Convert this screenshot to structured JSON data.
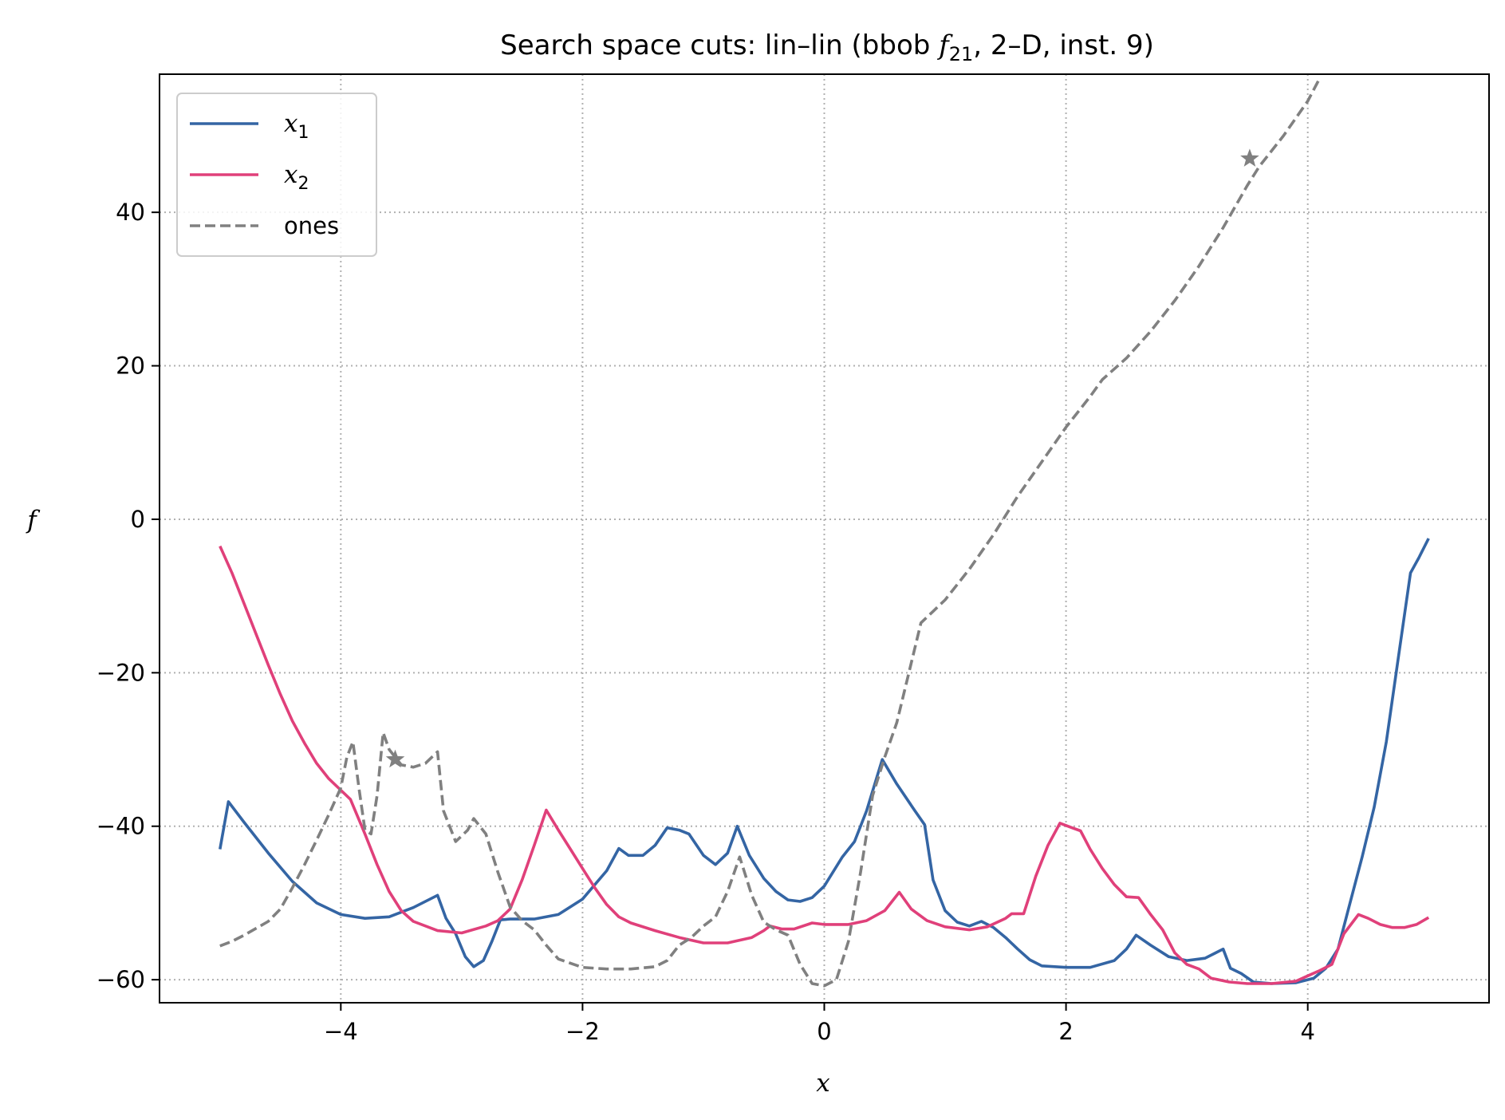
{
  "chart_data": {
    "type": "line",
    "title_parts": [
      "Search space cuts: lin–lin (bbob ",
      "f",
      "21",
      ", 2–D, inst. 9)"
    ],
    "xlabel": "x",
    "ylabel": "f",
    "xlim": [
      -5.5,
      5.5
    ],
    "ylim": [
      -63,
      58
    ],
    "xticks": [
      -4,
      -2,
      0,
      2,
      4
    ],
    "yticks": [
      -60,
      -40,
      -20,
      0,
      20,
      40
    ],
    "xtick_labels": [
      "−4",
      "−2",
      "0",
      "2",
      "4"
    ],
    "ytick_labels": [
      "−60",
      "−40",
      "−20",
      "0",
      "20",
      "40"
    ],
    "grid": true,
    "legend_position": "upper-left",
    "series": [
      {
        "name": "x",
        "name_sub": "1",
        "color": "#3465a4",
        "dashed": false,
        "points": [
          [
            -5.0,
            -43.0
          ],
          [
            -4.93,
            -36.8
          ],
          [
            -4.8,
            -39.5
          ],
          [
            -4.6,
            -43.5
          ],
          [
            -4.4,
            -47.2
          ],
          [
            -4.2,
            -50.0
          ],
          [
            -4.0,
            -51.5
          ],
          [
            -3.8,
            -52.0
          ],
          [
            -3.6,
            -51.8
          ],
          [
            -3.4,
            -50.6
          ],
          [
            -3.2,
            -49.0
          ],
          [
            -3.13,
            -52.0
          ],
          [
            -3.05,
            -54.0
          ],
          [
            -2.97,
            -57.0
          ],
          [
            -2.9,
            -58.3
          ],
          [
            -2.82,
            -57.5
          ],
          [
            -2.75,
            -55.0
          ],
          [
            -2.68,
            -52.2
          ],
          [
            -2.6,
            -52.1
          ],
          [
            -2.4,
            -52.1
          ],
          [
            -2.2,
            -51.5
          ],
          [
            -2.0,
            -49.5
          ],
          [
            -1.8,
            -45.8
          ],
          [
            -1.7,
            -42.9
          ],
          [
            -1.62,
            -43.8
          ],
          [
            -1.5,
            -43.8
          ],
          [
            -1.4,
            -42.5
          ],
          [
            -1.3,
            -40.2
          ],
          [
            -1.2,
            -40.5
          ],
          [
            -1.12,
            -41.0
          ],
          [
            -1.0,
            -43.8
          ],
          [
            -0.9,
            -45.0
          ],
          [
            -0.8,
            -43.5
          ],
          [
            -0.72,
            -40.0
          ],
          [
            -0.62,
            -43.8
          ],
          [
            -0.5,
            -46.8
          ],
          [
            -0.4,
            -48.5
          ],
          [
            -0.3,
            -49.6
          ],
          [
            -0.2,
            -49.8
          ],
          [
            -0.1,
            -49.3
          ],
          [
            0.0,
            -47.8
          ],
          [
            0.15,
            -44.0
          ],
          [
            0.25,
            -42.0
          ],
          [
            0.35,
            -38.0
          ],
          [
            0.48,
            -31.3
          ],
          [
            0.6,
            -34.5
          ],
          [
            0.75,
            -38.0
          ],
          [
            0.83,
            -39.8
          ],
          [
            0.9,
            -47.0
          ],
          [
            1.0,
            -51.0
          ],
          [
            1.1,
            -52.5
          ],
          [
            1.2,
            -53.0
          ],
          [
            1.3,
            -52.4
          ],
          [
            1.4,
            -53.2
          ],
          [
            1.5,
            -54.5
          ],
          [
            1.6,
            -56.0
          ],
          [
            1.7,
            -57.4
          ],
          [
            1.8,
            -58.2
          ],
          [
            2.0,
            -58.4
          ],
          [
            2.2,
            -58.4
          ],
          [
            2.4,
            -57.5
          ],
          [
            2.5,
            -56.0
          ],
          [
            2.58,
            -54.2
          ],
          [
            2.7,
            -55.5
          ],
          [
            2.85,
            -57.0
          ],
          [
            3.0,
            -57.5
          ],
          [
            3.15,
            -57.2
          ],
          [
            3.3,
            -56.0
          ],
          [
            3.36,
            -58.5
          ],
          [
            3.45,
            -59.2
          ],
          [
            3.55,
            -60.3
          ],
          [
            3.7,
            -60.5
          ],
          [
            3.9,
            -60.4
          ],
          [
            4.05,
            -59.8
          ],
          [
            4.15,
            -58.5
          ],
          [
            4.25,
            -56.0
          ],
          [
            4.35,
            -50.0
          ],
          [
            4.45,
            -44.0
          ],
          [
            4.55,
            -37.5
          ],
          [
            4.65,
            -29.0
          ],
          [
            4.75,
            -18.0
          ],
          [
            4.85,
            -7.0
          ],
          [
            4.92,
            -5.0
          ],
          [
            5.0,
            -2.5
          ]
        ]
      },
      {
        "name": "x",
        "name_sub": "2",
        "color": "#e0407a",
        "dashed": false,
        "points": [
          [
            -5.0,
            -3.5
          ],
          [
            -4.9,
            -7.0
          ],
          [
            -4.8,
            -11.0
          ],
          [
            -4.7,
            -15.0
          ],
          [
            -4.6,
            -19.0
          ],
          [
            -4.5,
            -22.8
          ],
          [
            -4.4,
            -26.3
          ],
          [
            -4.3,
            -29.2
          ],
          [
            -4.2,
            -31.8
          ],
          [
            -4.1,
            -33.8
          ],
          [
            -4.0,
            -35.3
          ],
          [
            -3.92,
            -36.5
          ],
          [
            -3.8,
            -41.0
          ],
          [
            -3.7,
            -45.0
          ],
          [
            -3.6,
            -48.5
          ],
          [
            -3.5,
            -51.0
          ],
          [
            -3.4,
            -52.4
          ],
          [
            -3.2,
            -53.6
          ],
          [
            -3.0,
            -53.9
          ],
          [
            -2.8,
            -53.0
          ],
          [
            -2.7,
            -52.3
          ],
          [
            -2.6,
            -50.8
          ],
          [
            -2.5,
            -47.0
          ],
          [
            -2.4,
            -42.5
          ],
          [
            -2.3,
            -37.9
          ],
          [
            -2.2,
            -40.5
          ],
          [
            -2.1,
            -43.0
          ],
          [
            -2.0,
            -45.5
          ],
          [
            -1.9,
            -48.0
          ],
          [
            -1.8,
            -50.2
          ],
          [
            -1.7,
            -51.8
          ],
          [
            -1.6,
            -52.6
          ],
          [
            -1.4,
            -53.6
          ],
          [
            -1.2,
            -54.5
          ],
          [
            -1.0,
            -55.2
          ],
          [
            -0.8,
            -55.2
          ],
          [
            -0.6,
            -54.5
          ],
          [
            -0.5,
            -53.6
          ],
          [
            -0.45,
            -53.0
          ],
          [
            -0.35,
            -53.4
          ],
          [
            -0.25,
            -53.4
          ],
          [
            -0.1,
            -52.6
          ],
          [
            0.0,
            -52.8
          ],
          [
            0.2,
            -52.8
          ],
          [
            0.35,
            -52.3
          ],
          [
            0.5,
            -51.0
          ],
          [
            0.62,
            -48.6
          ],
          [
            0.72,
            -50.8
          ],
          [
            0.85,
            -52.3
          ],
          [
            1.0,
            -53.1
          ],
          [
            1.2,
            -53.5
          ],
          [
            1.35,
            -53.1
          ],
          [
            1.5,
            -52.0
          ],
          [
            1.55,
            -51.4
          ],
          [
            1.65,
            -51.4
          ],
          [
            1.75,
            -46.5
          ],
          [
            1.85,
            -42.5
          ],
          [
            1.95,
            -39.6
          ],
          [
            2.05,
            -40.2
          ],
          [
            2.12,
            -40.6
          ],
          [
            2.2,
            -43.0
          ],
          [
            2.3,
            -45.5
          ],
          [
            2.4,
            -47.6
          ],
          [
            2.5,
            -49.2
          ],
          [
            2.6,
            -49.3
          ],
          [
            2.7,
            -51.5
          ],
          [
            2.8,
            -53.5
          ],
          [
            2.9,
            -56.5
          ],
          [
            3.0,
            -58.0
          ],
          [
            3.1,
            -58.6
          ],
          [
            3.2,
            -59.8
          ],
          [
            3.35,
            -60.3
          ],
          [
            3.5,
            -60.5
          ],
          [
            3.7,
            -60.5
          ],
          [
            3.9,
            -60.2
          ],
          [
            4.0,
            -59.5
          ],
          [
            4.1,
            -58.8
          ],
          [
            4.2,
            -58.0
          ],
          [
            4.3,
            -54.0
          ],
          [
            4.42,
            -51.5
          ],
          [
            4.5,
            -52.0
          ],
          [
            4.6,
            -52.8
          ],
          [
            4.7,
            -53.2
          ],
          [
            4.8,
            -53.2
          ],
          [
            4.9,
            -52.8
          ],
          [
            5.0,
            -51.9
          ]
        ]
      },
      {
        "name": "ones",
        "name_sub": "",
        "color": "#808080",
        "dashed": true,
        "points": [
          [
            -5.0,
            -55.6
          ],
          [
            -4.9,
            -55.0
          ],
          [
            -4.8,
            -54.2
          ],
          [
            -4.7,
            -53.3
          ],
          [
            -4.6,
            -52.4
          ],
          [
            -4.5,
            -50.8
          ],
          [
            -4.4,
            -48.0
          ],
          [
            -4.3,
            -45.0
          ],
          [
            -4.2,
            -41.8
          ],
          [
            -4.1,
            -38.5
          ],
          [
            -4.0,
            -35.0
          ],
          [
            -3.95,
            -31.0
          ],
          [
            -3.9,
            -29.0
          ],
          [
            -3.85,
            -35.0
          ],
          [
            -3.8,
            -40.5
          ],
          [
            -3.75,
            -41.0
          ],
          [
            -3.7,
            -36.0
          ],
          [
            -3.65,
            -27.8
          ],
          [
            -3.6,
            -30.0
          ],
          [
            -3.5,
            -32.0
          ],
          [
            -3.4,
            -32.3
          ],
          [
            -3.3,
            -31.8
          ],
          [
            -3.2,
            -30.3
          ],
          [
            -3.15,
            -38.0
          ],
          [
            -3.05,
            -42.0
          ],
          [
            -2.95,
            -40.5
          ],
          [
            -2.9,
            -39.0
          ],
          [
            -2.8,
            -41.0
          ],
          [
            -2.7,
            -46.0
          ],
          [
            -2.6,
            -50.5
          ],
          [
            -2.5,
            -52.3
          ],
          [
            -2.4,
            -53.5
          ],
          [
            -2.3,
            -55.5
          ],
          [
            -2.2,
            -57.3
          ],
          [
            -2.0,
            -58.4
          ],
          [
            -1.8,
            -58.6
          ],
          [
            -1.6,
            -58.6
          ],
          [
            -1.4,
            -58.3
          ],
          [
            -1.3,
            -57.5
          ],
          [
            -1.2,
            -55.5
          ],
          [
            -1.1,
            -54.5
          ],
          [
            -1.0,
            -53.0
          ],
          [
            -0.9,
            -51.8
          ],
          [
            -0.8,
            -48.5
          ],
          [
            -0.7,
            -44.0
          ],
          [
            -0.6,
            -49.0
          ],
          [
            -0.5,
            -52.5
          ],
          [
            -0.4,
            -53.5
          ],
          [
            -0.3,
            -54.2
          ],
          [
            -0.2,
            -58.0
          ],
          [
            -0.1,
            -60.5
          ],
          [
            0.0,
            -60.8
          ],
          [
            0.1,
            -60.0
          ],
          [
            0.2,
            -55.0
          ],
          [
            0.3,
            -46.0
          ],
          [
            0.4,
            -36.0
          ],
          [
            0.5,
            -31.0
          ],
          [
            0.6,
            -26.5
          ],
          [
            0.7,
            -20.0
          ],
          [
            0.8,
            -13.5
          ],
          [
            0.9,
            -12.0
          ],
          [
            1.0,
            -10.5
          ],
          [
            1.2,
            -6.5
          ],
          [
            1.4,
            -2.0
          ],
          [
            1.6,
            3.0
          ],
          [
            1.8,
            7.5
          ],
          [
            2.0,
            12.0
          ],
          [
            2.2,
            16.0
          ],
          [
            2.3,
            18.2
          ],
          [
            2.5,
            21.0
          ],
          [
            2.7,
            24.5
          ],
          [
            2.9,
            28.5
          ],
          [
            3.1,
            33.0
          ],
          [
            3.3,
            38.0
          ],
          [
            3.5,
            43.5
          ],
          [
            3.6,
            46.0
          ],
          [
            3.8,
            50.0
          ],
          [
            4.0,
            54.5
          ],
          [
            4.1,
            57.5
          ]
        ]
      }
    ],
    "markers": [
      {
        "x": -3.55,
        "y": -31.3,
        "color": "#808080",
        "symbol": "star"
      },
      {
        "x": 3.52,
        "y": 47.0,
        "color": "#808080",
        "symbol": "star"
      }
    ]
  }
}
